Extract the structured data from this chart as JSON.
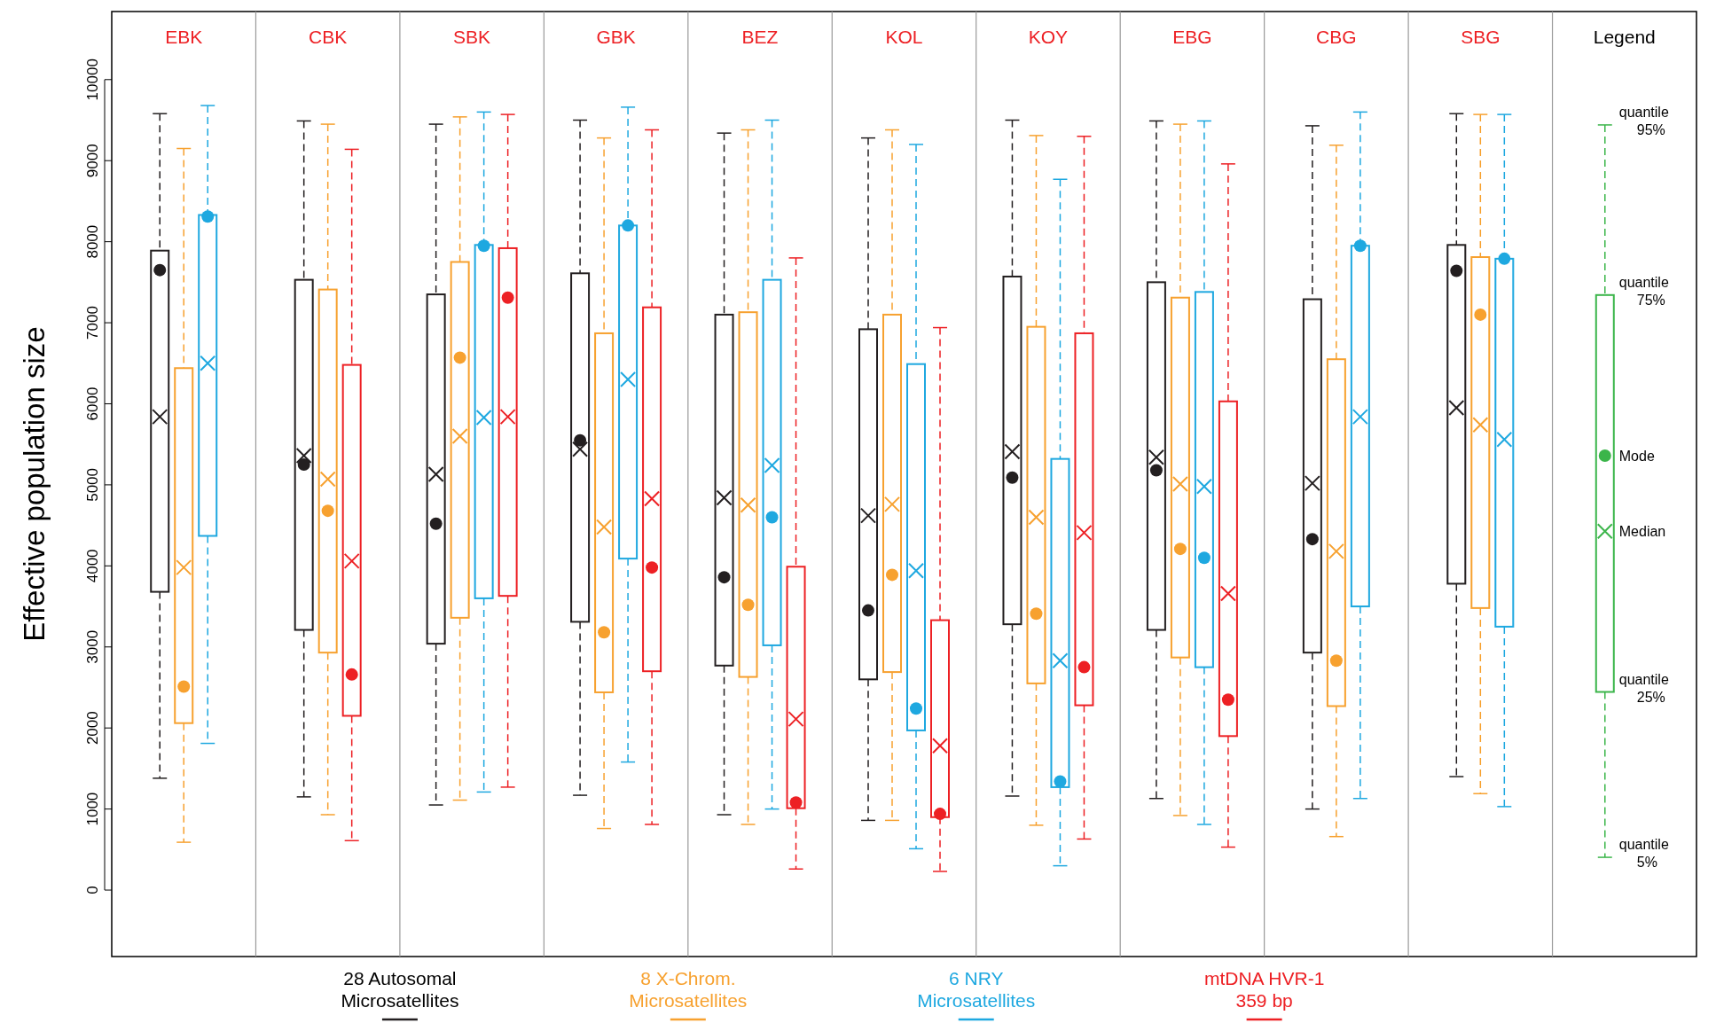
{
  "chart_data": {
    "type": "box",
    "categories": [
      "EBK",
      "CBK",
      "SBK",
      "GBK",
      "BEZ",
      "KOL",
      "KOY",
      "EBG",
      "CBG",
      "SBG"
    ],
    "ylabel": "Effective population size",
    "ylim": [
      -820,
      10840
    ],
    "yticks": [
      0,
      1000,
      2000,
      3000,
      4000,
      5000,
      6000,
      7000,
      8000,
      9000,
      10000
    ],
    "grid": false,
    "legend": "bottom",
    "marker": "circle",
    "annotations": [
      "Legend",
      "quantile 95%",
      "quantile 75%",
      "Mode",
      "Median",
      "quantile 25%",
      "quantile 5%"
    ],
    "series": [
      {
        "name": "28 Autosomal Microsatellites",
        "color": "#231f20",
        "boxes": [
          {
            "low": 1380,
            "q1": 3680,
            "median": 5840,
            "q3": 7890,
            "high": 9580
          },
          {
            "low": 1150,
            "q1": 3210,
            "median": 5360,
            "q3": 7530,
            "high": 9490
          },
          {
            "low": 1050,
            "q1": 3040,
            "median": 5130,
            "q3": 7350,
            "high": 9450
          },
          {
            "low": 1170,
            "q1": 3310,
            "median": 5440,
            "q3": 7610,
            "high": 9500
          },
          {
            "low": 930,
            "q1": 2770,
            "median": 4840,
            "q3": 7100,
            "high": 9340
          },
          {
            "low": 860,
            "q1": 2600,
            "median": 4620,
            "q3": 6920,
            "high": 9280
          },
          {
            "low": 1160,
            "q1": 3280,
            "median": 5410,
            "q3": 7570,
            "high": 9500
          },
          {
            "low": 1130,
            "q1": 3210,
            "median": 5340,
            "q3": 7500,
            "high": 9490
          },
          {
            "low": 1000,
            "q1": 2930,
            "median": 5020,
            "q3": 7290,
            "high": 9430
          },
          {
            "low": 1400,
            "q1": 3780,
            "median": 5950,
            "q3": 7960,
            "high": 9580
          }
        ]
      },
      {
        "name": "8 X-Chrom. Microsatellites",
        "color": "#f7a12f",
        "boxes": [
          {
            "low": 590,
            "q1": 2060,
            "median": 3980,
            "q3": 6440,
            "high": 9150
          },
          {
            "low": 930,
            "q1": 2930,
            "median": 5070,
            "q3": 7410,
            "high": 9450
          },
          {
            "low": 1110,
            "q1": 3360,
            "median": 5600,
            "q3": 7750,
            "high": 9540
          },
          {
            "low": 760,
            "q1": 2440,
            "median": 4480,
            "q3": 6870,
            "high": 9280
          },
          {
            "low": 810,
            "q1": 2630,
            "median": 4750,
            "q3": 7130,
            "high": 9380
          },
          {
            "low": 860,
            "q1": 2690,
            "median": 4760,
            "q3": 7100,
            "high": 9380
          },
          {
            "low": 800,
            "q1": 2550,
            "median": 4600,
            "q3": 6950,
            "high": 9310
          },
          {
            "low": 920,
            "q1": 2870,
            "median": 5010,
            "q3": 7310,
            "high": 9450
          },
          {
            "low": 660,
            "q1": 2270,
            "median": 4180,
            "q3": 6550,
            "high": 9190
          },
          {
            "low": 1190,
            "q1": 3480,
            "median": 5740,
            "q3": 7810,
            "high": 9570
          }
        ]
      },
      {
        "name": "6 NRY Microsatellites",
        "color": "#1ea8e0",
        "boxes": [
          {
            "low": 1810,
            "q1": 4370,
            "median": 6500,
            "q3": 8330,
            "high": 9680
          },
          null,
          {
            "low": 1210,
            "q1": 3600,
            "median": 5830,
            "q3": 7960,
            "high": 9600
          },
          {
            "low": 1580,
            "q1": 4090,
            "median": 6300,
            "q3": 8200,
            "high": 9660
          },
          {
            "low": 1000,
            "q1": 3020,
            "median": 5240,
            "q3": 7530,
            "high": 9500
          },
          {
            "low": 510,
            "q1": 1970,
            "median": 3940,
            "q3": 6490,
            "high": 9200
          },
          {
            "low": 300,
            "q1": 1270,
            "median": 2830,
            "q3": 5320,
            "high": 8770
          },
          {
            "low": 810,
            "q1": 2750,
            "median": 4980,
            "q3": 7380,
            "high": 9490
          },
          {
            "low": 1130,
            "q1": 3500,
            "median": 5840,
            "q3": 7950,
            "high": 9600
          },
          {
            "low": 1030,
            "q1": 3250,
            "median": 5560,
            "q3": 7790,
            "high": 9570
          }
        ]
      },
      {
        "name": "mtDNA HVR-1 359 bp",
        "color": "#ed2024",
        "boxes": [
          null,
          {
            "low": 610,
            "q1": 2150,
            "median": 4060,
            "q3": 6480,
            "high": 9140
          },
          {
            "low": 1270,
            "q1": 3630,
            "median": 5840,
            "q3": 7920,
            "high": 9570
          },
          {
            "low": 810,
            "q1": 2700,
            "median": 4830,
            "q3": 7190,
            "high": 9380
          },
          {
            "low": 260,
            "q1": 1010,
            "median": 2110,
            "q3": 3990,
            "high": 7800
          },
          {
            "low": 230,
            "q1": 900,
            "median": 1780,
            "q3": 3330,
            "high": 6940
          },
          {
            "low": 630,
            "q1": 2280,
            "median": 4410,
            "q3": 6870,
            "high": 9300
          },
          {
            "low": 530,
            "q1": 1900,
            "median": 3660,
            "q3": 6030,
            "high": 8960
          },
          null,
          null
        ]
      },
      {
        "type": "scatter",
        "color": "#231f20",
        "x": [
          "EBK",
          "CBK",
          "SBK",
          "GBK",
          "BEZ",
          "KOL",
          "KOY",
          "EBG",
          "CBG",
          "SBG"
        ],
        "values": [
          7650,
          5250,
          4520,
          5550,
          3860,
          3450,
          5090,
          5180,
          4330,
          7640
        ]
      },
      {
        "type": "scatter",
        "color": "#f7a12f",
        "x": [
          "EBK",
          "CBK",
          "SBK",
          "GBK",
          "BEZ",
          "KOL",
          "KOY",
          "EBG",
          "CBG",
          "SBG"
        ],
        "values": [
          2510,
          4680,
          6570,
          3180,
          3520,
          3890,
          3410,
          4210,
          2830,
          7100
        ]
      },
      {
        "type": "scatter",
        "color": "#1ea8e0",
        "x": [
          "EBK",
          "SBK",
          "GBK",
          "BEZ",
          "KOL",
          "KOY",
          "EBG",
          "CBG",
          "SBG"
        ],
        "values": [
          8310,
          7950,
          8200,
          4600,
          2240,
          1340,
          4100,
          7950,
          7790
        ]
      },
      {
        "type": "scatter",
        "color": "#ed2024",
        "x": [
          "CBK",
          "SBK",
          "GBK",
          "BEZ",
          "KOL",
          "KOY",
          "EBG"
        ],
        "values": [
          2660,
          7310,
          3980,
          1080,
          940,
          2750,
          2350
        ]
      }
    ]
  }
}
